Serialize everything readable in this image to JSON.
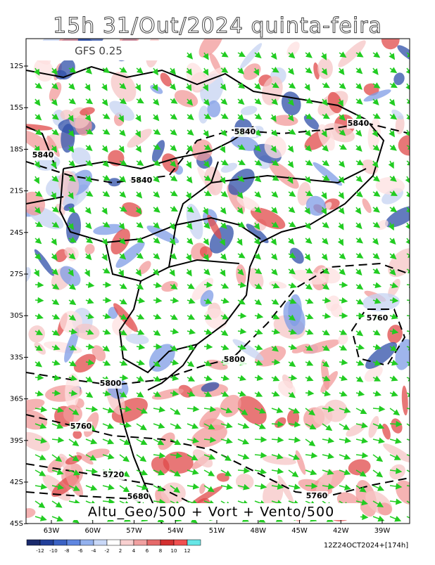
{
  "title": "15h 31/Out/2024 quinta-feira",
  "model_label": "GFS 0.25",
  "caption": "Altu_Geo/500 + Vort + Vento/500",
  "run_label": "12Z24OCT2024+[174h]",
  "lat_labels": [
    "12S",
    "15S",
    "18S",
    "21S",
    "24S",
    "27S",
    "30S",
    "33S",
    "36S",
    "39S",
    "42S",
    "45S"
  ],
  "lon_labels": [
    "63W",
    "60W",
    "57W",
    "54W",
    "51W",
    "48W",
    "45W",
    "42W",
    "39W"
  ],
  "contour_labels": [
    "5840",
    "5840",
    "5840",
    "5840",
    "5800",
    "5800",
    "5760",
    "5760",
    "5760",
    "5720",
    "5680"
  ],
  "colorbar_labels": [
    "-12",
    "-10",
    "-8",
    "-6",
    "-4",
    "-2",
    "2",
    "4",
    "6",
    "8",
    "10",
    "12"
  ]
}
